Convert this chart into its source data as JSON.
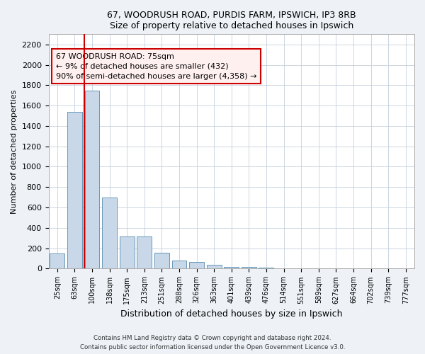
{
  "title1": "67, WOODRUSH ROAD, PURDIS FARM, IPSWICH, IP3 8RB",
  "title2": "Size of property relative to detached houses in Ipswich",
  "xlabel": "Distribution of detached houses by size in Ipswich",
  "ylabel": "Number of detached properties",
  "categories": [
    "25sqm",
    "63sqm",
    "100sqm",
    "138sqm",
    "175sqm",
    "213sqm",
    "251sqm",
    "288sqm",
    "326sqm",
    "363sqm",
    "401sqm",
    "439sqm",
    "476sqm",
    "514sqm",
    "551sqm",
    "589sqm",
    "627sqm",
    "664sqm",
    "702sqm",
    "739sqm",
    "777sqm"
  ],
  "values": [
    150,
    1540,
    1750,
    700,
    315,
    315,
    155,
    80,
    65,
    35,
    20,
    15,
    10,
    3,
    2,
    1,
    1,
    0,
    0,
    0,
    0
  ],
  "bar_color": "#c8d8e8",
  "bar_edge_color": "#6699bb",
  "vline_x": 1.55,
  "vline_color": "#cc0000",
  "annotation_text": "67 WOODRUSH ROAD: 75sqm\n← 9% of detached houses are smaller (432)\n90% of semi-detached houses are larger (4,358) →",
  "annotation_box_facecolor": "#fff0f0",
  "annotation_box_edge": "#cc0000",
  "ylim": [
    0,
    2300
  ],
  "yticks": [
    0,
    200,
    400,
    600,
    800,
    1000,
    1200,
    1400,
    1600,
    1800,
    2000,
    2200
  ],
  "footer1": "Contains HM Land Registry data © Crown copyright and database right 2024.",
  "footer2": "Contains public sector information licensed under the Open Government Licence v3.0.",
  "bg_color": "#eef2f7",
  "plot_bg_color": "#ffffff",
  "grid_color": "#c5d0dc"
}
